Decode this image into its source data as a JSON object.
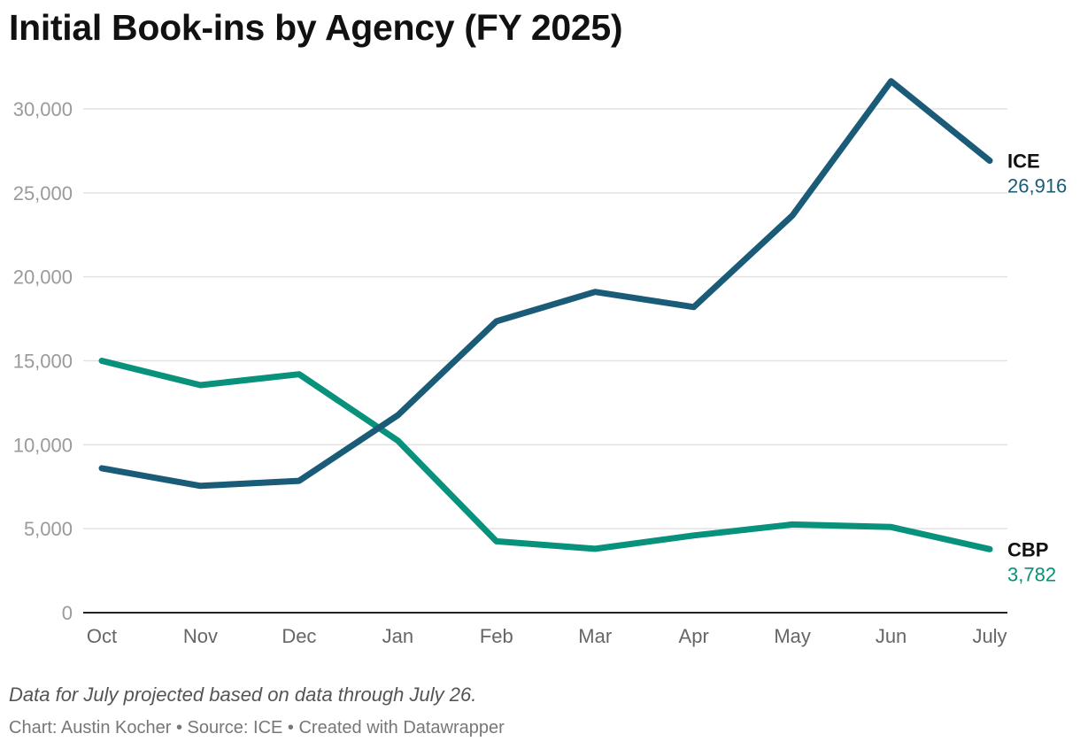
{
  "chart_data": {
    "type": "line",
    "title": "Initial Book-ins by Agency (FY 2025)",
    "note": "Data for July projected based on data through July 26.",
    "credit": "Chart: Austin Kocher • Source: ICE • Created with Datawrapper",
    "categories": [
      "Oct",
      "Nov",
      "Dec",
      "Jan",
      "Feb",
      "Mar",
      "Apr",
      "May",
      "Jun",
      "July"
    ],
    "y_ticks": [
      0,
      5000,
      10000,
      15000,
      20000,
      25000,
      30000
    ],
    "y_tick_labels": [
      "0",
      "5,000",
      "10,000",
      "15,000",
      "20,000",
      "25,000",
      "30,000"
    ],
    "ylim": [
      0,
      32000
    ],
    "grid": true,
    "legend": "direct labels at line ends (right)",
    "series": [
      {
        "name": "ICE",
        "color": "#1a5b78",
        "values": [
          8600,
          7550,
          7850,
          11750,
          17350,
          19100,
          18200,
          23650,
          31650,
          26916
        ],
        "end_label": "26,916"
      },
      {
        "name": "CBP",
        "color": "#08917b",
        "values": [
          15000,
          13550,
          14200,
          10250,
          4250,
          3800,
          4600,
          5250,
          5100,
          3782
        ],
        "end_label": "3,782"
      }
    ]
  }
}
